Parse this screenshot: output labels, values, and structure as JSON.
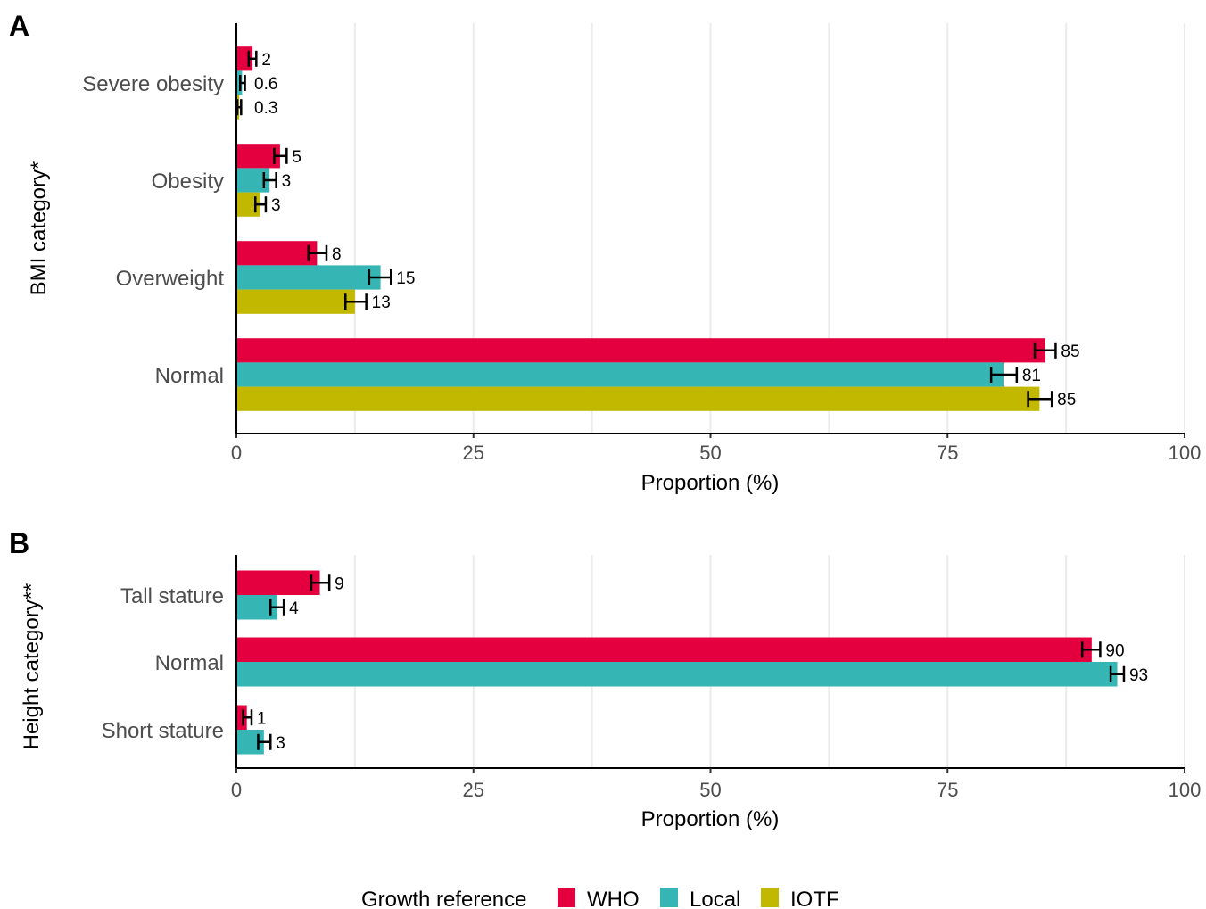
{
  "legend": {
    "title": "Growth reference",
    "items": [
      {
        "name": "WHO",
        "color": "#e4003f"
      },
      {
        "name": "Local",
        "color": "#36b5b5"
      },
      {
        "name": "IOTF",
        "color": "#c2b800"
      }
    ]
  },
  "chart_data": [
    {
      "type": "bar",
      "orientation": "horizontal",
      "panel": "A",
      "xlabel": "Proportion (%)",
      "ylabel": "BMI category*",
      "xlim": [
        0,
        100
      ],
      "xticks": [
        "0",
        "25",
        "50",
        "75",
        "100"
      ],
      "grid": "vertical",
      "legend_position": "bottom",
      "categories": [
        "Severe obesity",
        "Obesity",
        "Overweight",
        "Normal"
      ],
      "series": [
        {
          "name": "WHO",
          "color": "#e4003f",
          "values": [
            1.7,
            4.6,
            8.5,
            85.3
          ],
          "labels": [
            "2",
            "5",
            "8",
            "85"
          ],
          "error": [
            [
              1.3,
              2.1
            ],
            [
              4.0,
              5.3
            ],
            [
              7.6,
              9.5
            ],
            [
              84.2,
              86.4
            ]
          ]
        },
        {
          "name": "Local",
          "color": "#36b5b5",
          "values": [
            0.6,
            3.5,
            15.2,
            80.9
          ],
          "labels": [
            "0.6",
            "3",
            "15",
            "81"
          ],
          "error": [
            [
              0.4,
              0.9
            ],
            [
              2.9,
              4.2
            ],
            [
              14.0,
              16.3
            ],
            [
              79.6,
              82.3
            ]
          ]
        },
        {
          "name": "IOTF",
          "color": "#c2b800",
          "values": [
            0.3,
            2.5,
            12.5,
            84.7
          ],
          "labels": [
            "0.3",
            "3",
            "13",
            "85"
          ],
          "error": [
            [
              0.1,
              0.5
            ],
            [
              2.0,
              3.1
            ],
            [
              11.5,
              13.7
            ],
            [
              83.5,
              86.0
            ]
          ]
        }
      ]
    },
    {
      "type": "bar",
      "orientation": "horizontal",
      "panel": "B",
      "xlabel": "Proportion (%)",
      "ylabel": "Height category**",
      "xlim": [
        0,
        100
      ],
      "xticks": [
        "0",
        "25",
        "50",
        "75",
        "100"
      ],
      "grid": "vertical",
      "legend_position": "bottom",
      "categories": [
        "Tall stature",
        "Normal",
        "Short stature"
      ],
      "series": [
        {
          "name": "WHO",
          "color": "#e4003f",
          "values": [
            8.8,
            90.2,
            1.1
          ],
          "labels": [
            "9",
            "90",
            "1"
          ],
          "error": [
            [
              7.9,
              9.8
            ],
            [
              89.2,
              91.1
            ],
            [
              0.7,
              1.6
            ]
          ]
        },
        {
          "name": "Local",
          "color": "#36b5b5",
          "values": [
            4.3,
            92.9,
            2.9
          ],
          "labels": [
            "4",
            "93",
            "3"
          ],
          "error": [
            [
              3.6,
              5.0
            ],
            [
              92.2,
              93.6
            ],
            [
              2.3,
              3.6
            ]
          ]
        }
      ]
    }
  ]
}
